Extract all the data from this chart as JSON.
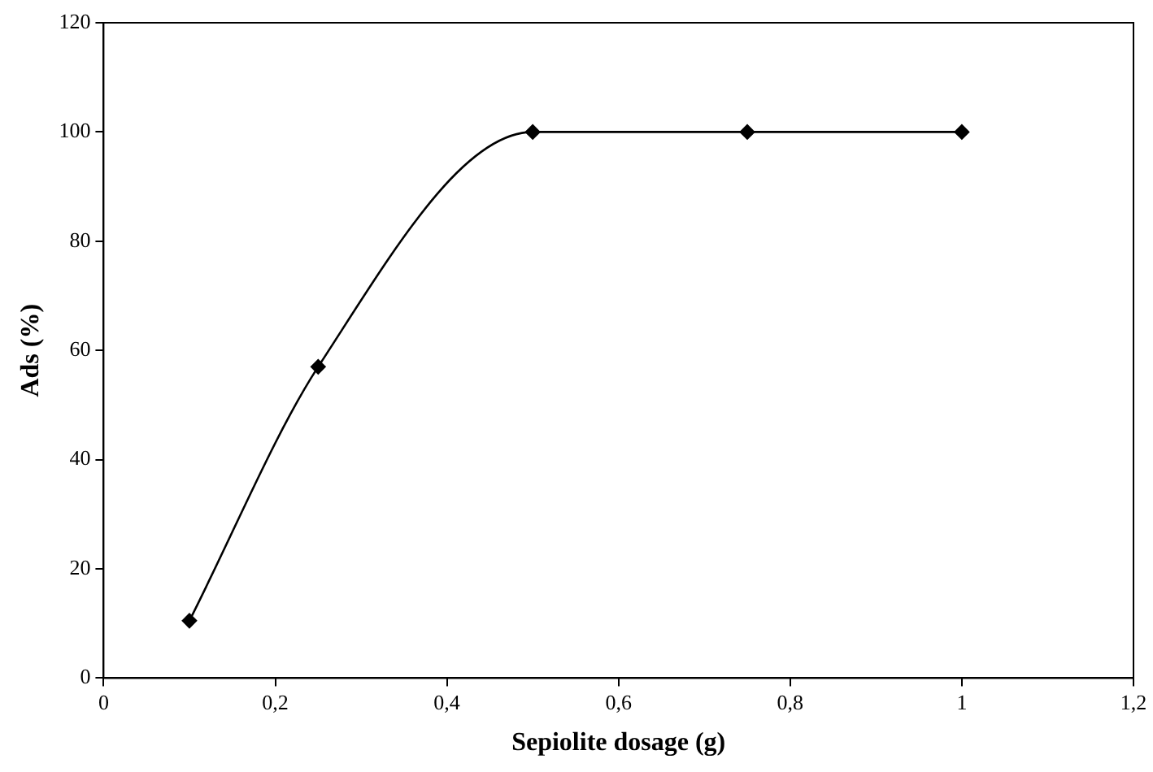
{
  "chart_data": {
    "type": "line",
    "xlabel": "Sepiolite dosage (g)",
    "ylabel": "Ads (%)",
    "x": [
      0.1,
      0.25,
      0.5,
      0.75,
      1
    ],
    "series": [
      {
        "color": "#000000",
        "values": [
          10.5,
          57,
          100,
          100,
          100
        ]
      }
    ],
    "xlim": [
      0,
      1.2
    ],
    "xticks": [
      0,
      {
        "value": 0.2,
        "label": "0,2"
      },
      {
        "value": 0.4,
        "label": "0,4"
      },
      {
        "value": 0.6,
        "label": "0,6"
      },
      {
        "value": 0.8,
        "label": "0,8"
      },
      1,
      {
        "value": 1.2,
        "label": "1,2"
      }
    ],
    "ylim": [
      0,
      120
    ],
    "yticks": [
      0,
      20,
      40,
      60,
      80,
      100,
      120
    ],
    "grid": false,
    "legend": false,
    "marker": "diamond",
    "line_style": "solid"
  }
}
